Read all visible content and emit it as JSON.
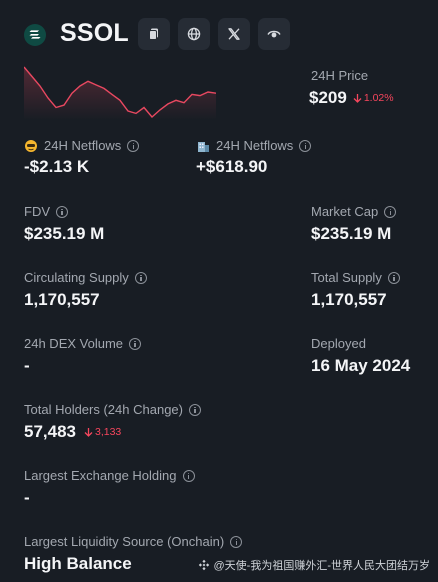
{
  "header": {
    "token_name": "SSOL",
    "icons": [
      "copy-icon",
      "globe-icon",
      "x-twitter-icon",
      "eye-icon"
    ]
  },
  "price": {
    "label": "24H Price",
    "value": "$209",
    "change": "1.02%",
    "change_direction": "down",
    "change_color": "#f6465d"
  },
  "netflows": [
    {
      "label": "24H Netflows",
      "value": "-$2.13 K",
      "icon": "whale-emoji-icon"
    },
    {
      "label": "24H Netflows",
      "value": "+$618.90",
      "icon": "building-emoji-icon"
    }
  ],
  "stats": {
    "fdv": {
      "label": "FDV",
      "value": "$235.19 M"
    },
    "market_cap": {
      "label": "Market Cap",
      "value": "$235.19 M"
    },
    "circulating_supply": {
      "label": "Circulating Supply",
      "value": "1,170,557"
    },
    "total_supply": {
      "label": "Total Supply",
      "value": "1,170,557"
    },
    "dex_volume": {
      "label": "24h DEX Volume",
      "value": "-"
    },
    "deployed": {
      "label": "Deployed",
      "value": "16 May 2024"
    },
    "total_holders": {
      "label": "Total Holders (24h Change)",
      "value": "57,483",
      "change": "3,133",
      "change_direction": "down"
    },
    "largest_exchange": {
      "label": "Largest Exchange Holding",
      "value": "-"
    },
    "largest_liquidity": {
      "label": "Largest Liquidity Source (Onchain)",
      "value": "High Balance"
    }
  },
  "sparkline": {
    "values": [
      100,
      92,
      84,
      74,
      66,
      68,
      78,
      84,
      88,
      85,
      82,
      77,
      72,
      63,
      61,
      66,
      58,
      64,
      69,
      72,
      70,
      77,
      76,
      79,
      78
    ],
    "color": "#e84860"
  },
  "watermark": "@天使-我为祖国赚外汇-世界人民大团结万岁"
}
